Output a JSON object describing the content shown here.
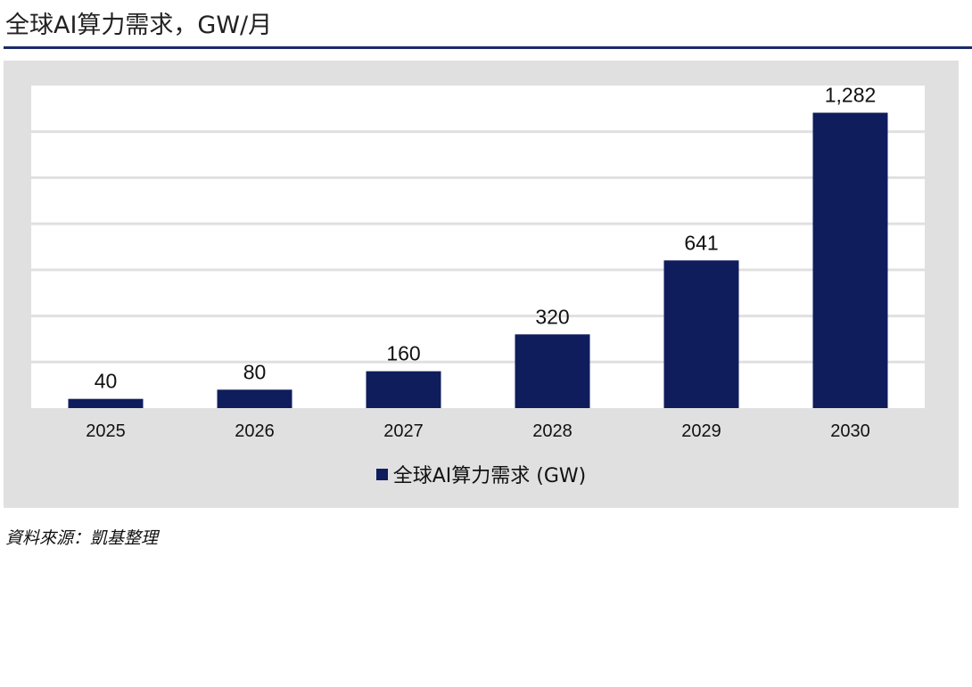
{
  "header": {
    "title": "全球AI算力需求，GW/月"
  },
  "footer": {
    "source": "資料來源：凱基整理"
  },
  "chart_data": {
    "type": "bar",
    "categories": [
      "2025",
      "2026",
      "2027",
      "2028",
      "2029",
      "2030"
    ],
    "series": [
      {
        "name": "全球AI算力需求 (GW)",
        "values": [
          40,
          80,
          160,
          320,
          641,
          1282
        ],
        "labels": [
          "40",
          "80",
          "160",
          "320",
          "641",
          "1,282"
        ],
        "color": "#0f1d5c"
      }
    ],
    "ylim": [
      0,
      1400
    ],
    "grid": true,
    "legend": "bottom",
    "background": "#e0e0e0",
    "plot_background": "#ffffff",
    "gridline_color": "#e0e0e0"
  }
}
